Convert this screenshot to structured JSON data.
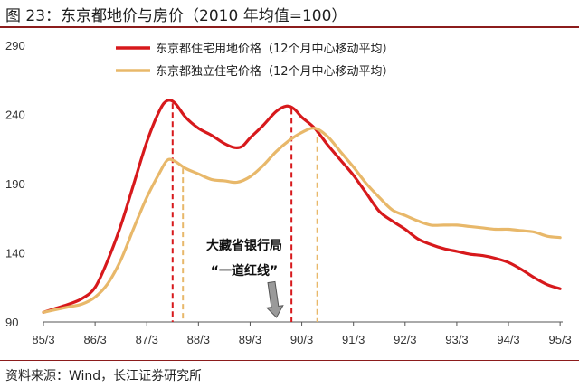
{
  "title": "图 23：东京都地价与房价（2010 年均值=100）",
  "source": "资料来源：Wind，长江证券研究所",
  "chart_data": {
    "type": "line",
    "title": "图 23：东京都地价与房价（2010 年均值=100）",
    "xlabel": "",
    "ylabel": "",
    "ylim": [
      90,
      290
    ],
    "xlim": [
      1985.25,
      1995.3
    ],
    "yticks": [
      90,
      140,
      190,
      240,
      290
    ],
    "xticks": [
      "85/3",
      "86/3",
      "87/3",
      "88/3",
      "89/3",
      "90/3",
      "91/3",
      "92/3",
      "93/3",
      "94/3",
      "95/3"
    ],
    "grid": false,
    "legend_position": "top-left",
    "series": [
      {
        "name": "东京都住宅用地价格（12个月中心移动平均）",
        "color": "#d7191c",
        "points": [
          [
            1985.25,
            97
          ],
          [
            1985.5,
            100
          ],
          [
            1985.75,
            103
          ],
          [
            1986.0,
            107
          ],
          [
            1986.25,
            115
          ],
          [
            1986.5,
            135
          ],
          [
            1986.75,
            160
          ],
          [
            1987.0,
            190
          ],
          [
            1987.25,
            220
          ],
          [
            1987.5,
            243
          ],
          [
            1987.65,
            250
          ],
          [
            1987.8,
            248
          ],
          [
            1988.0,
            238
          ],
          [
            1988.25,
            230
          ],
          [
            1988.5,
            225
          ],
          [
            1988.75,
            219
          ],
          [
            1988.95,
            216
          ],
          [
            1989.1,
            217
          ],
          [
            1989.25,
            223
          ],
          [
            1989.5,
            232
          ],
          [
            1989.75,
            242
          ],
          [
            1989.95,
            246
          ],
          [
            1990.1,
            244
          ],
          [
            1990.25,
            238
          ],
          [
            1990.5,
            230
          ],
          [
            1990.75,
            218
          ],
          [
            1991.0,
            207
          ],
          [
            1991.25,
            196
          ],
          [
            1991.5,
            183
          ],
          [
            1991.75,
            170
          ],
          [
            1992.0,
            163
          ],
          [
            1992.25,
            157
          ],
          [
            1992.5,
            150
          ],
          [
            1992.75,
            146
          ],
          [
            1993.0,
            143
          ],
          [
            1993.25,
            141
          ],
          [
            1993.5,
            139
          ],
          [
            1993.75,
            138
          ],
          [
            1994.0,
            136
          ],
          [
            1994.25,
            133
          ],
          [
            1994.5,
            128
          ],
          [
            1994.75,
            122
          ],
          [
            1995.0,
            117
          ],
          [
            1995.25,
            114
          ]
        ]
      },
      {
        "name": "东京都独立住宅价格（12个月中心移动平均）",
        "color": "#e8b86a",
        "points": [
          [
            1985.25,
            97
          ],
          [
            1985.5,
            99
          ],
          [
            1985.75,
            101
          ],
          [
            1986.0,
            103
          ],
          [
            1986.25,
            108
          ],
          [
            1986.5,
            118
          ],
          [
            1986.75,
            135
          ],
          [
            1987.0,
            158
          ],
          [
            1987.25,
            180
          ],
          [
            1987.5,
            198
          ],
          [
            1987.65,
            207
          ],
          [
            1987.8,
            206
          ],
          [
            1988.0,
            201
          ],
          [
            1988.25,
            197
          ],
          [
            1988.5,
            193
          ],
          [
            1988.75,
            192
          ],
          [
            1989.0,
            191
          ],
          [
            1989.25,
            195
          ],
          [
            1989.5,
            203
          ],
          [
            1989.75,
            213
          ],
          [
            1990.0,
            221
          ],
          [
            1990.25,
            227
          ],
          [
            1990.5,
            230
          ],
          [
            1990.75,
            224
          ],
          [
            1991.0,
            213
          ],
          [
            1991.25,
            202
          ],
          [
            1991.5,
            190
          ],
          [
            1991.75,
            180
          ],
          [
            1992.0,
            171
          ],
          [
            1992.25,
            167
          ],
          [
            1992.5,
            163
          ],
          [
            1992.75,
            160
          ],
          [
            1993.0,
            160
          ],
          [
            1993.25,
            160
          ],
          [
            1993.5,
            159
          ],
          [
            1993.75,
            158
          ],
          [
            1994.0,
            157
          ],
          [
            1994.25,
            157
          ],
          [
            1994.5,
            156
          ],
          [
            1994.75,
            155
          ],
          [
            1995.0,
            152
          ],
          [
            1995.25,
            151
          ]
        ]
      }
    ],
    "reference_lines": [
      {
        "x": 1987.75,
        "color": "#d7191c"
      },
      {
        "x": 1987.95,
        "color": "#e8b86a"
      },
      {
        "x": 1990.05,
        "color": "#d7191c"
      },
      {
        "x": 1990.55,
        "color": "#e8b86a"
      }
    ],
    "annotation": {
      "line1": "大藏省银行局",
      "line2": "“一道红线”",
      "target_x": 1989.9,
      "target_y": 92
    }
  }
}
